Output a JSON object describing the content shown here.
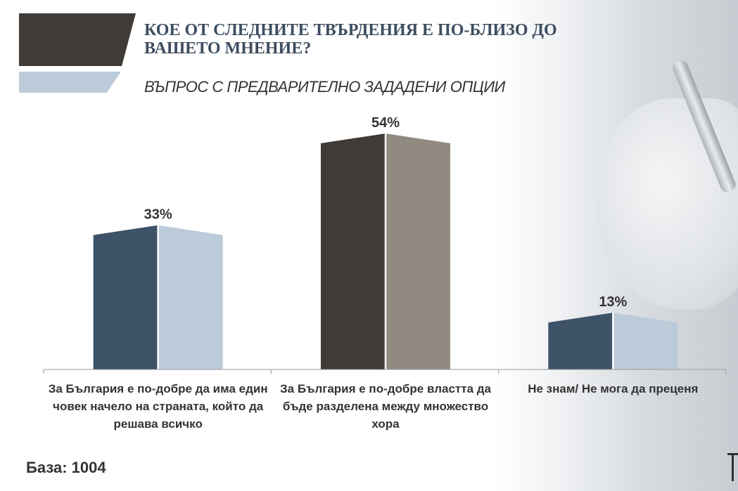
{
  "header": {
    "title": "КОЕ ОТ СЛЕДНИТЕ ТВЪРДЕНИЯ Е ПО-БЛИЗО ДО ВАШЕТО МНЕНИЕ?",
    "subtitle": "ВЪПРОС С ПРЕДВАРИТЕЛНО ЗАДАДЕНИ ОПЦИИ"
  },
  "footer": {
    "base_label": "База: 1004"
  },
  "colors": {
    "title_bar_dark": "#403b36",
    "title_bar_light": "#bccbd9",
    "title_text": "#3d4d5f"
  },
  "chart_data": {
    "type": "bar",
    "title": "КОЕ ОТ СЛЕДНИТЕ ТВЪРДЕНИЯ Е ПО-БЛИЗО ДО ВАШЕТО МНЕНИЕ?",
    "xlabel": "",
    "ylabel": "",
    "ylim": [
      0,
      60
    ],
    "grid": false,
    "categories": [
      "За България е по-добре да има един човек начело на страната, който да решава всичко",
      "За България е по-добре властта да бъде разделена между множество хора",
      "Не знам/ Не мога да преценя"
    ],
    "values": [
      33,
      54,
      13
    ],
    "value_labels": [
      "33%",
      "54%",
      "13%"
    ],
    "bar_colors": [
      {
        "left": "#3e5268",
        "right": "#bccbd9"
      },
      {
        "left": "#403b36",
        "right": "#918a80"
      },
      {
        "left": "#3e5268",
        "right": "#bccbd9"
      }
    ]
  }
}
